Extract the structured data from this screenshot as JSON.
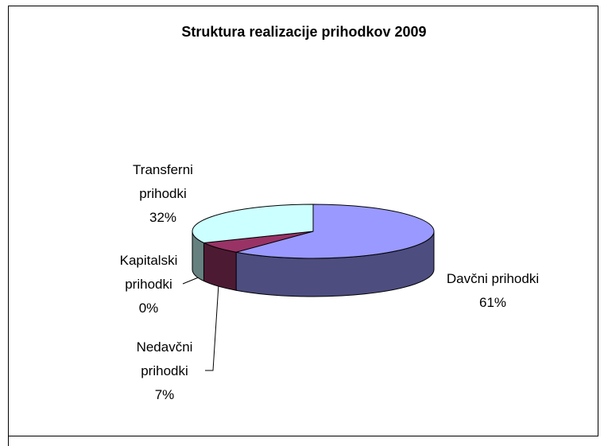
{
  "chart_data": {
    "type": "pie",
    "title": "Struktura realizacije prihodkov 2009",
    "categories": [
      "Davčni prihodki",
      "Nedavčni prihodki",
      "Kapitalski prihodki",
      "Transferni prihodki"
    ],
    "values": [
      61,
      7,
      0,
      32
    ],
    "value_labels": [
      "61%",
      "7%",
      "0%",
      "32%"
    ],
    "colors": [
      "#9999ff",
      "#993366",
      "#669999",
      "#ccffff"
    ]
  }
}
